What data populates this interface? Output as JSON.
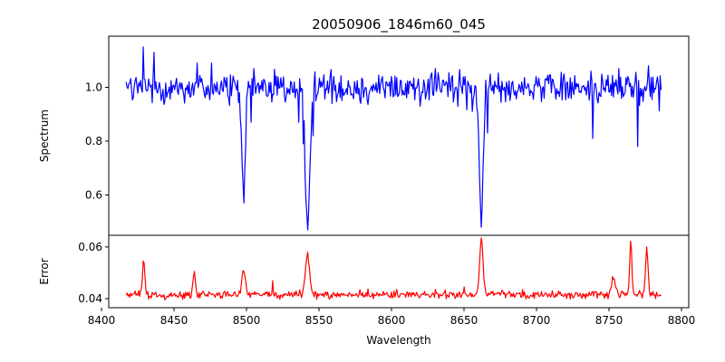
{
  "chart_data": {
    "type": "line",
    "title": "20050906_1846m60_045",
    "xlabel": "Wavelength",
    "xlim": [
      8405,
      8805
    ],
    "xticks": [
      8400,
      8450,
      8500,
      8550,
      8600,
      8650,
      8700,
      8750,
      8800
    ],
    "grid": false,
    "panels": [
      {
        "name": "spectrum",
        "ylabel": "Spectrum",
        "ylim": [
          0.45,
          1.19
        ],
        "yticks": [
          0.6,
          0.8,
          1.0
        ],
        "ytick_labels": [
          "0.6",
          "0.8",
          "1.0"
        ],
        "color": "#0000ff",
        "x_range": [
          8417,
          8786
        ],
        "baseline": 1.0,
        "noise": 0.045,
        "lines": [
          {
            "center": 8498.0,
            "depth": 0.42,
            "width": 1.2
          },
          {
            "center": 8542.0,
            "depth": 0.52,
            "width": 1.5
          },
          {
            "center": 8662.0,
            "depth": 0.48,
            "width": 1.4
          }
        ],
        "key_points": [
          [
            8417,
            1.02
          ],
          [
            8429,
            1.15
          ],
          [
            8436,
            1.13
          ],
          [
            8466,
            1.09
          ],
          [
            8476,
            1.09
          ],
          [
            8487,
            0.97
          ],
          [
            8498,
            0.57
          ],
          [
            8503,
            0.87
          ],
          [
            8512,
            1.03
          ],
          [
            8524,
            1.0
          ],
          [
            8536,
            0.87
          ],
          [
            8539,
            0.79
          ],
          [
            8542,
            0.47
          ],
          [
            8546,
            0.82
          ],
          [
            8560,
            1.04
          ],
          [
            8579,
            0.94
          ],
          [
            8600,
            1.04
          ],
          [
            8620,
            0.93
          ],
          [
            8630,
            1.07
          ],
          [
            8651,
            1.04
          ],
          [
            8656,
            0.91
          ],
          [
            8662,
            0.48
          ],
          [
            8666,
            0.83
          ],
          [
            8679,
            1.02
          ],
          [
            8700,
            1.04
          ],
          [
            8722,
            0.96
          ],
          [
            8739,
            0.81
          ],
          [
            8757,
            1.07
          ],
          [
            8770,
            0.78
          ],
          [
            8777,
            1.08
          ],
          [
            8786,
            0.99
          ]
        ]
      },
      {
        "name": "error",
        "ylabel": "Error",
        "ylim": [
          0.0365,
          0.0645
        ],
        "yticks": [
          0.04,
          0.06
        ],
        "ytick_labels": [
          "0.04",
          "0.06"
        ],
        "color": "#ff0000",
        "x_range": [
          8417,
          8786
        ],
        "baseline": 0.0415,
        "noise": 0.0012,
        "lines": [
          {
            "center": 8429.0,
            "height": 0.013,
            "width": 0.8
          },
          {
            "center": 8464.0,
            "height": 0.009,
            "width": 0.8
          },
          {
            "center": 8498.0,
            "height": 0.01,
            "width": 1.2
          },
          {
            "center": 8542.0,
            "height": 0.015,
            "width": 1.4
          },
          {
            "center": 8662.0,
            "height": 0.02,
            "width": 1.2
          },
          {
            "center": 8753.0,
            "height": 0.007,
            "width": 1.2
          },
          {
            "center": 8765.0,
            "height": 0.019,
            "width": 0.8
          },
          {
            "center": 8776.0,
            "height": 0.017,
            "width": 0.9
          }
        ],
        "key_points": [
          [
            8417,
            0.0415
          ],
          [
            8429,
            0.0546
          ],
          [
            8464,
            0.0505
          ],
          [
            8498,
            0.0505
          ],
          [
            8518,
            0.047
          ],
          [
            8542,
            0.058
          ],
          [
            8600,
            0.0425
          ],
          [
            8650,
            0.0445
          ],
          [
            8662,
            0.0635
          ],
          [
            8700,
            0.042
          ],
          [
            8753,
            0.0475
          ],
          [
            8765,
            0.0622
          ],
          [
            8776,
            0.06
          ],
          [
            8786,
            0.041
          ]
        ]
      }
    ]
  }
}
